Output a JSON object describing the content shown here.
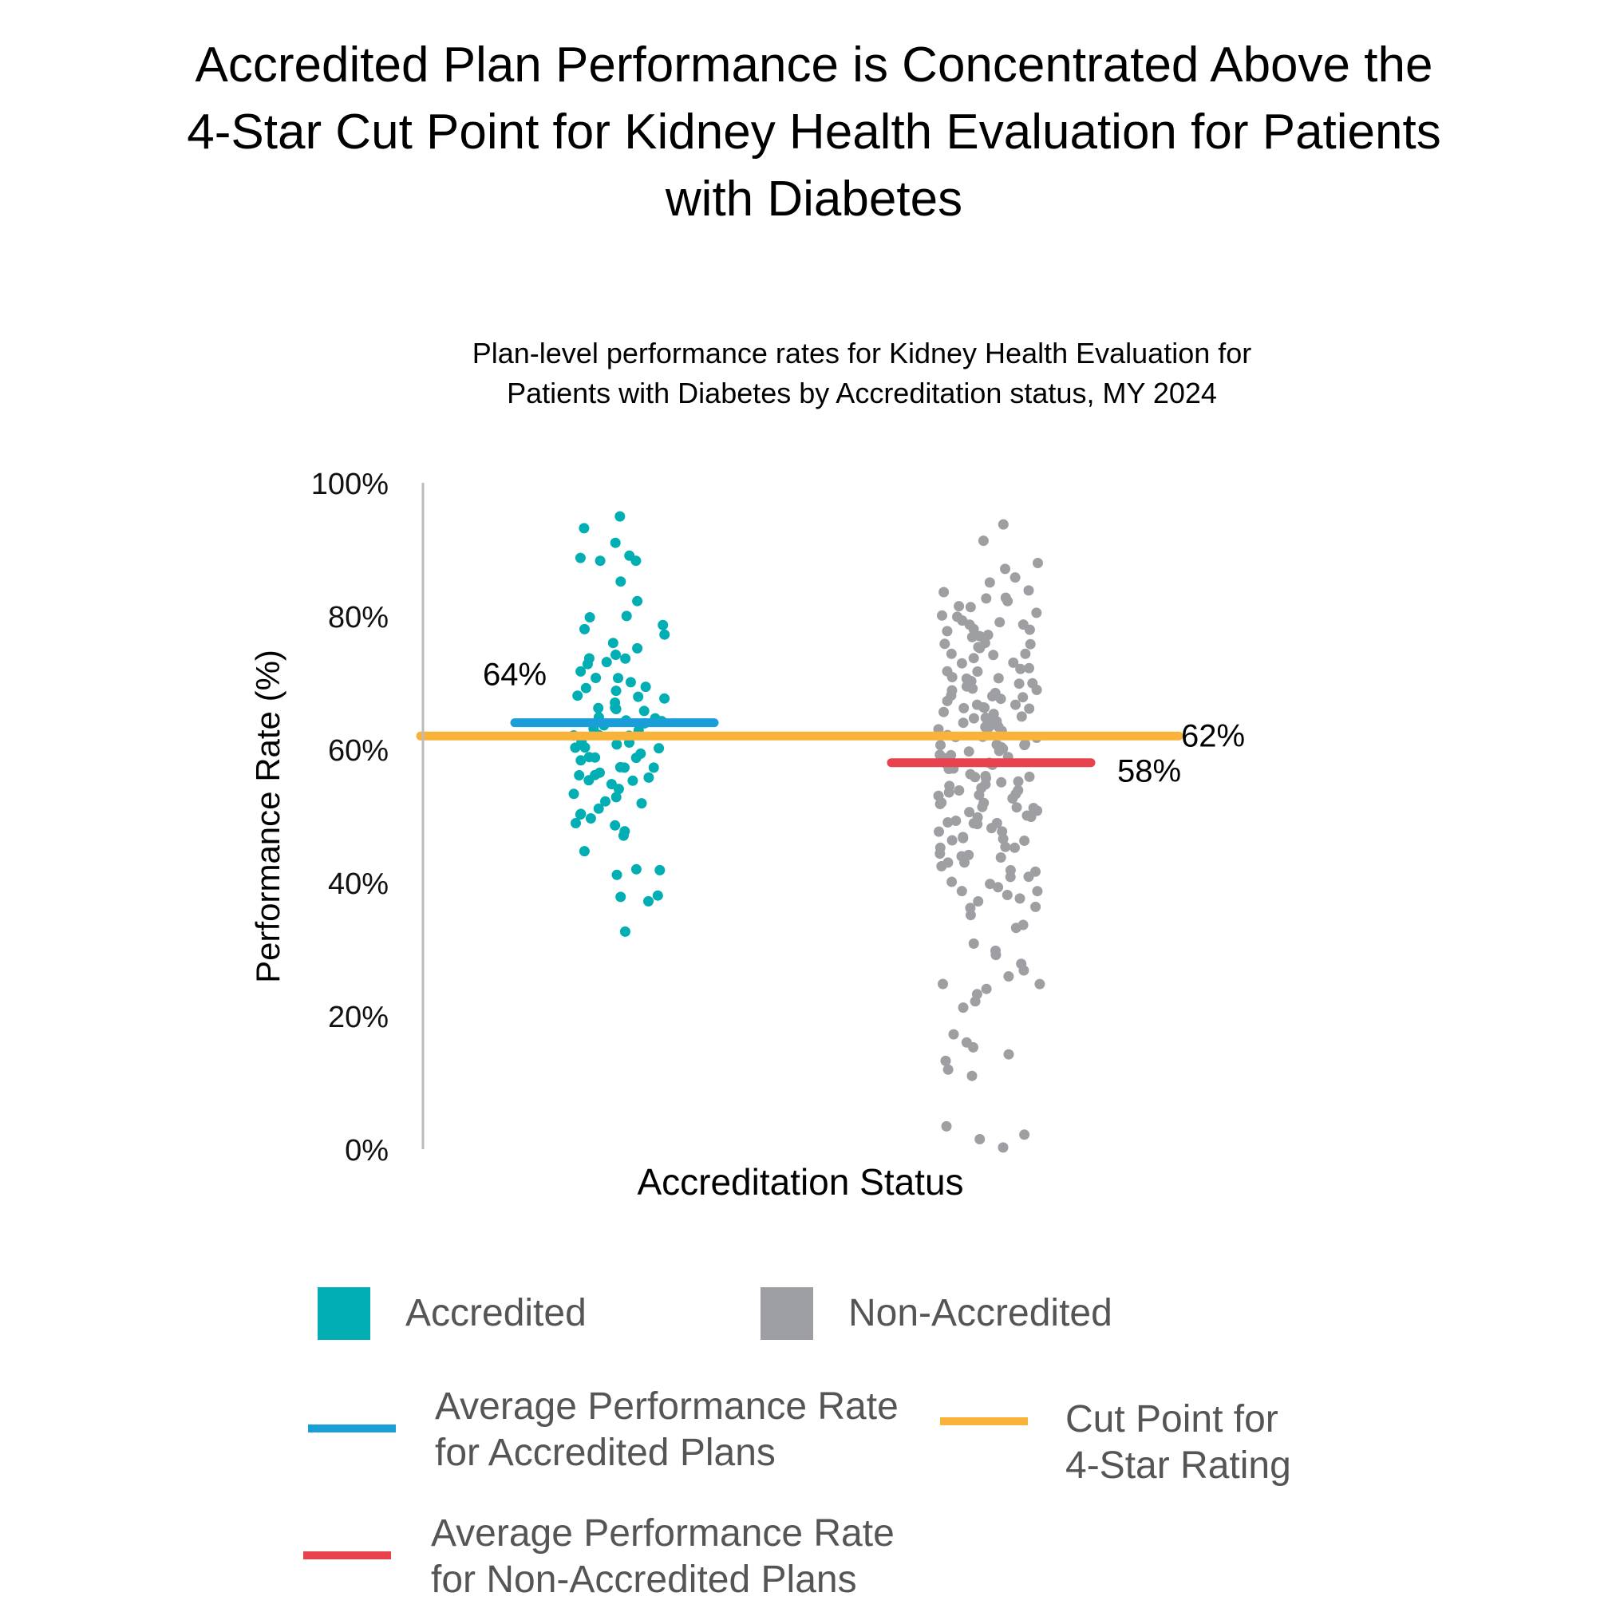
{
  "title": "Accredited Plan Performance is Concentrated Above the\n4-Star Cut Point for Kidney Health Evaluation for Patients\nwith Diabetes",
  "subtitle": "Plan-level performance rates for Kidney Health Evaluation for\nPatients with Diabetes by Accreditation status, MY 2024",
  "colors": {
    "accredited": "#00AEB3",
    "non_accredited": "#9D9FA2",
    "avg_accredited": "#1A9ED9",
    "avg_non_accredited": "#E8424F",
    "cut_point": "#F9B33A",
    "axis": "#BBBBBB"
  },
  "legend": {
    "accredited": "Accredited",
    "non_accredited": "Non-Accredited",
    "avg_accredited": "Average Performance Rate\nfor Accredited Plans",
    "cut_point": "Cut Point for\n4-Star Rating",
    "avg_non_accredited": "Average Performance Rate\nfor Non-Accredited Plans"
  },
  "chart_data": {
    "type": "scatter",
    "title": "Accredited Plan Performance is Concentrated Above the 4-Star Cut Point for Kidney Health Evaluation for Patients with Diabetes",
    "subtitle": "Plan-level performance rates for Kidney Health Evaluation for Patients with Diabetes by Accreditation status, MY 2024",
    "xlabel": "Accreditation Status",
    "ylabel": "Performance Rate (%)",
    "ylim": [
      0,
      100
    ],
    "yticks": [
      "0%",
      "20%",
      "40%",
      "60%",
      "80%",
      "100%"
    ],
    "ytick_values": [
      0,
      20,
      40,
      60,
      80,
      100
    ],
    "grid": false,
    "legend_position": "bottom",
    "series": [
      {
        "name": "Accredited",
        "color": "#00AEB3",
        "values": [
          95,
          93,
          91,
          89,
          89,
          88.5,
          88,
          85,
          82,
          80,
          79.5,
          79,
          78,
          77,
          76,
          75,
          74,
          74,
          73.5,
          73,
          73,
          72,
          71,
          70.5,
          70,
          69.5,
          69,
          68.5,
          68,
          68,
          67.5,
          67,
          66.5,
          66,
          66,
          65.5,
          65,
          65,
          64.5,
          64,
          64,
          63.5,
          63,
          63,
          62.5,
          62,
          62,
          61.5,
          61,
          61,
          60.5,
          60,
          60,
          59.5,
          59,
          59,
          58.5,
          58,
          57.5,
          57,
          57,
          56.5,
          56,
          56,
          55.5,
          55,
          55,
          54.5,
          54,
          53.5,
          53,
          52.5,
          52,
          51,
          50.5,
          50,
          49.5,
          49,
          48.5,
          48,
          47,
          45,
          42,
          42,
          41.5,
          38,
          38,
          37.5,
          33
        ]
      },
      {
        "name": "Non-Accredited",
        "color": "#9D9FA2",
        "values": [
          94,
          91,
          88,
          87,
          86,
          85,
          84,
          83.5,
          83,
          82.5,
          82,
          81.5,
          81,
          80.5,
          80,
          80,
          79.5,
          79,
          79,
          78.5,
          78,
          78,
          77.5,
          77,
          77,
          76.5,
          76,
          76,
          75.5,
          75,
          75,
          74.5,
          74,
          74,
          73.5,
          73,
          73,
          72.5,
          72,
          72,
          71.5,
          71,
          71,
          70.5,
          70,
          70,
          70,
          69.5,
          69,
          69,
          69,
          68.5,
          68,
          68,
          68,
          67.5,
          67,
          67,
          67,
          66.5,
          66,
          66,
          66,
          65.5,
          65,
          65,
          65,
          64.5,
          64,
          64,
          64,
          63.5,
          63,
          63,
          63,
          62.5,
          62,
          62,
          62,
          61.5,
          61,
          61,
          61,
          60.5,
          60,
          60,
          60,
          59.5,
          59,
          59,
          59,
          58.5,
          58,
          58,
          58,
          57.5,
          57,
          57,
          57,
          56.5,
          56,
          56,
          56,
          55.5,
          55,
          55,
          55,
          54.5,
          54,
          54,
          54,
          53.5,
          53,
          53,
          53,
          52.5,
          52,
          52,
          52,
          51.5,
          51,
          51,
          51,
          50.5,
          50,
          50,
          50,
          49.5,
          49,
          49,
          49,
          48.5,
          48,
          48,
          47.5,
          47,
          47,
          46.5,
          46,
          46,
          45.5,
          45,
          45,
          44.5,
          44,
          44,
          43.5,
          43,
          43,
          42.5,
          42,
          41.5,
          41,
          40.5,
          40,
          40,
          39.5,
          39,
          38.5,
          38,
          37.5,
          37,
          36.5,
          36,
          35,
          34,
          33,
          31,
          30,
          29,
          28,
          27,
          26,
          25,
          24.5,
          24,
          23,
          22,
          21,
          17,
          16,
          15,
          14,
          13,
          12,
          11,
          3.5,
          2.5,
          1.5,
          0
        ]
      }
    ],
    "reference_lines": [
      {
        "name": "Average Performance Rate for Accredited Plans",
        "value": 64,
        "label": "64%",
        "color": "#1A9ED9"
      },
      {
        "name": "Average Performance Rate for Non-Accredited Plans",
        "value": 58,
        "label": "58%",
        "color": "#E8424F"
      },
      {
        "name": "Cut Point for 4-Star Rating",
        "value": 62,
        "label": "62%",
        "color": "#F9B33A"
      }
    ]
  }
}
